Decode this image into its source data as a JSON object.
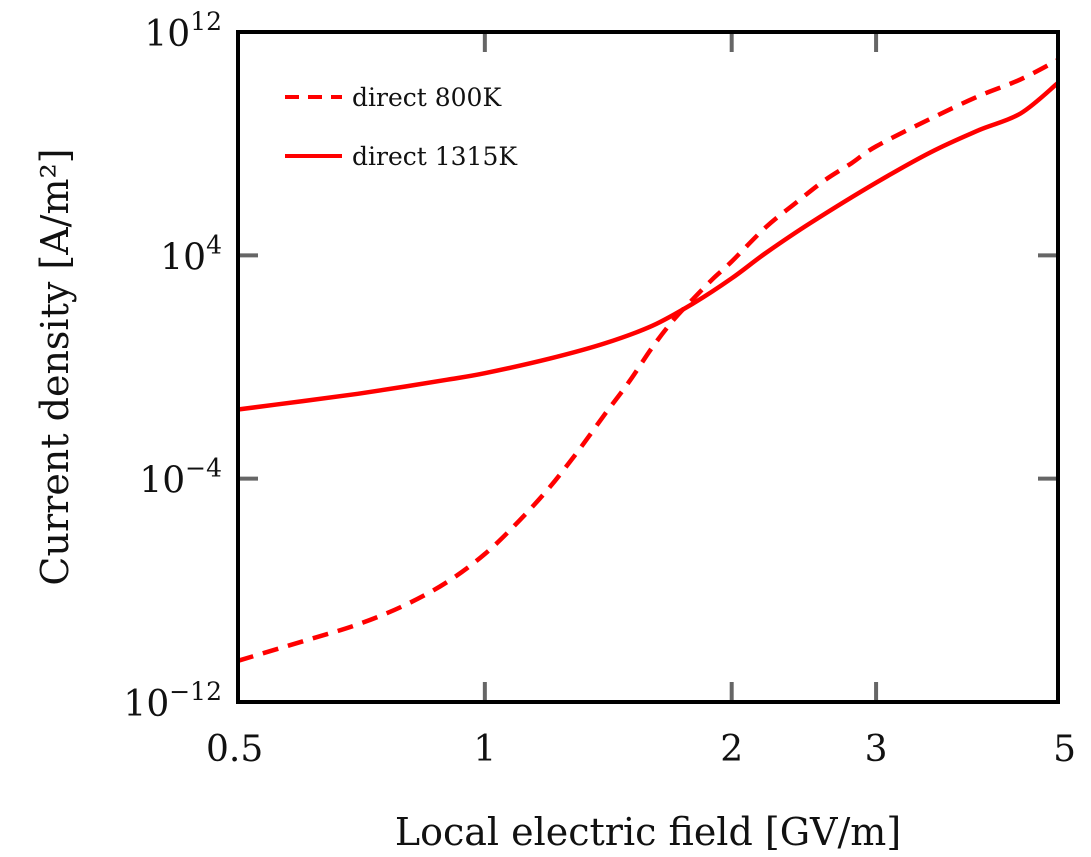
{
  "chart_data": {
    "type": "line",
    "xlabel": "Local electric field [GV/m]",
    "ylabel": "Current density [A/m²]",
    "x_scale": "log",
    "y_scale": "log",
    "xlim": [
      0.5,
      5
    ],
    "ylim": [
      1e-12,
      1000000000000.0
    ],
    "x_ticks": [
      {
        "value": 0.5,
        "label": "0.5"
      },
      {
        "value": 1,
        "label": "1"
      },
      {
        "value": 2,
        "label": "2"
      },
      {
        "value": 3,
        "label": "3"
      },
      {
        "value": 5,
        "label": "5"
      }
    ],
    "y_ticks": [
      {
        "value": 1e-12,
        "base": "10",
        "exp": "−12"
      },
      {
        "value": 0.0001,
        "base": "10",
        "exp": "−4"
      },
      {
        "value": 10000.0,
        "base": "10",
        "exp": "4"
      },
      {
        "value": 1000000000000.0,
        "base": "10",
        "exp": "12"
      }
    ],
    "grid": false,
    "legend_position": "top-left",
    "series": [
      {
        "name": "direct 800K",
        "style": "dashed",
        "color": "#ff0000",
        "x": [
          0.5,
          0.6,
          0.7,
          0.8,
          0.9,
          1.0,
          1.1,
          1.2,
          1.3,
          1.4,
          1.5,
          1.6,
          1.7,
          1.8,
          1.9,
          2.0,
          2.2,
          2.4,
          2.6,
          2.8,
          3.0,
          3.5,
          4.0,
          4.5,
          5.0
        ],
        "y": [
          3e-11,
          1.5e-10,
          6e-10,
          3e-09,
          2e-08,
          2e-07,
          3e-06,
          5e-05,
          0.001,
          0.02,
          0.3,
          5,
          50,
          300,
          1500,
          6000,
          100000.0,
          800000.0,
          5000000.0,
          20000000.0,
          80000000.0,
          800000000.0,
          5000000000.0,
          20000000000.0,
          100000000000.0
        ]
      },
      {
        "name": "direct 1315K",
        "style": "solid",
        "color": "#ff0000",
        "x": [
          0.5,
          0.6,
          0.7,
          0.8,
          0.9,
          1.0,
          1.2,
          1.4,
          1.6,
          1.8,
          2.0,
          2.2,
          2.5,
          3.0,
          3.5,
          4.0,
          4.5,
          5.0
        ],
        "y": [
          0.03,
          0.06,
          0.11,
          0.2,
          0.35,
          0.6,
          2,
          7,
          30,
          200,
          1500,
          12000,
          150000.0,
          4000000.0,
          50000000.0,
          300000000.0,
          1200000000.0,
          15000000000.0
        ]
      }
    ]
  }
}
